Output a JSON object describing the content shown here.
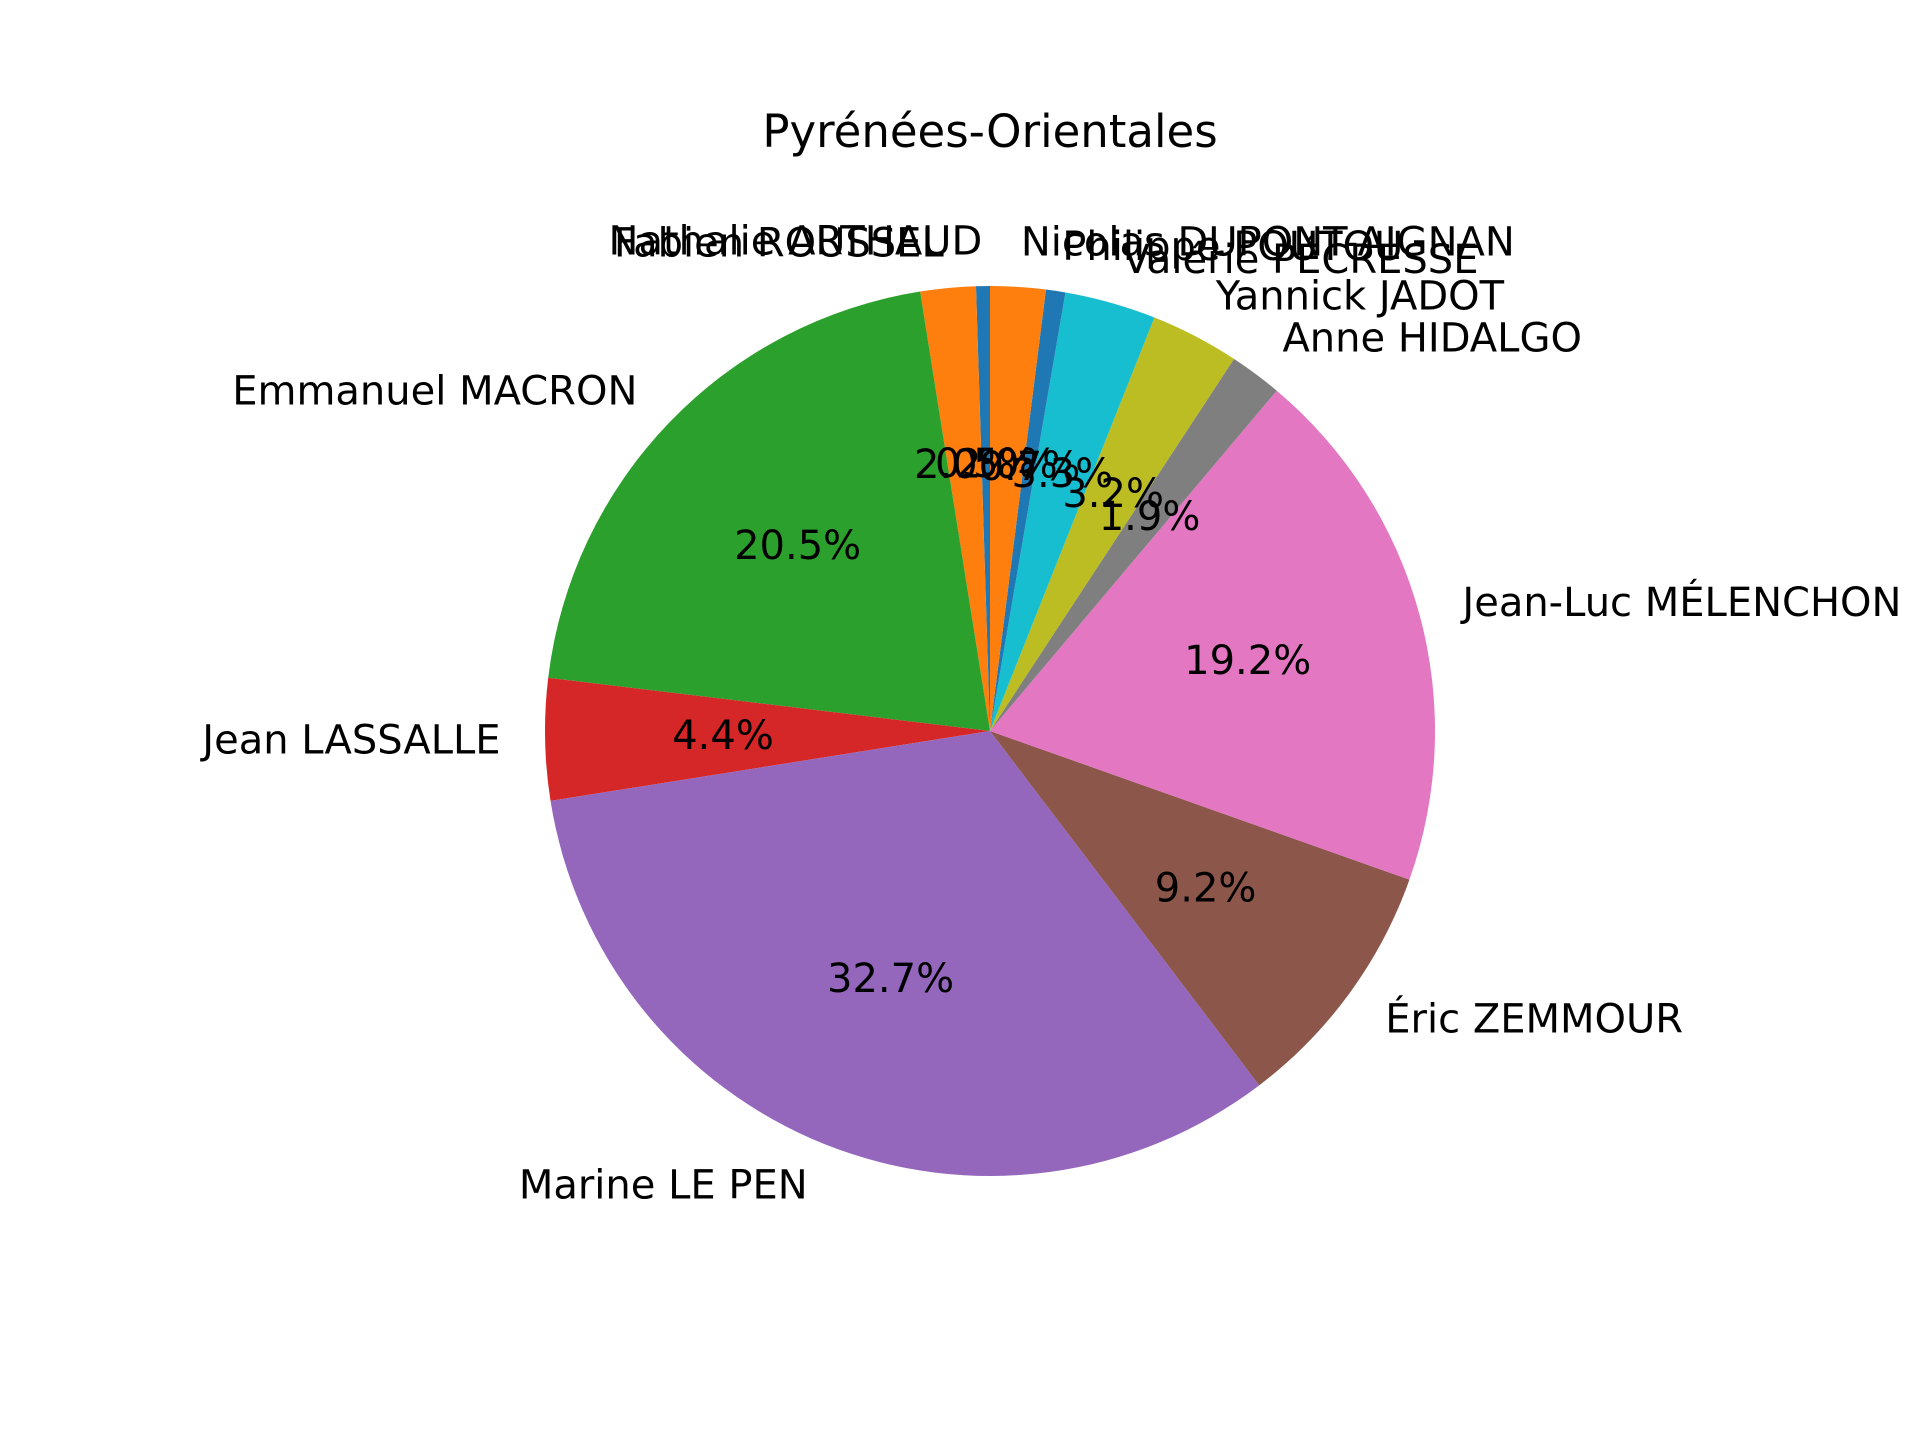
{
  "chart_data": {
    "type": "pie",
    "title": "Pyrénées-Orientales",
    "start_angle_deg": 90,
    "direction": "counterclockwise",
    "slices": [
      {
        "label": "Nathalie ARTHAUD",
        "value": 0.5,
        "pct_label": "0.5%",
        "color": "#1f77b4"
      },
      {
        "label": "Fabien ROUSSEL",
        "value": 2.0,
        "pct_label": "2.0%",
        "color": "#ff7f0e"
      },
      {
        "label": "Emmanuel MACRON",
        "value": 20.5,
        "pct_label": "20.5%",
        "color": "#2ca02c"
      },
      {
        "label": "Jean LASSALLE",
        "value": 4.4,
        "pct_label": "4.4%",
        "color": "#d62728"
      },
      {
        "label": "Marine LE PEN",
        "value": 32.7,
        "pct_label": "32.7%",
        "color": "#9467bd"
      },
      {
        "label": "Éric ZEMMOUR",
        "value": 9.2,
        "pct_label": "9.2%",
        "color": "#8c564b"
      },
      {
        "label": "Jean-Luc MÉLENCHON",
        "value": 19.2,
        "pct_label": "19.2%",
        "color": "#e377c2"
      },
      {
        "label": "Anne HIDALGO",
        "value": 1.9,
        "pct_label": "1.9%",
        "color": "#7f7f7f"
      },
      {
        "label": "Yannick JADOT",
        "value": 3.2,
        "pct_label": "3.2%",
        "color": "#bcbd22"
      },
      {
        "label": "Valérie PÉCRESSE",
        "value": 3.3,
        "pct_label": "3.3%",
        "color": "#17becf"
      },
      {
        "label": "Philippe POUTOU",
        "value": 0.7,
        "pct_label": "0.7%",
        "color": "#1f77b4"
      },
      {
        "label": "Nicolas DUPONT-AIGNAN",
        "value": 2.0,
        "pct_label": "2.0%",
        "color": "#ff7f0e"
      }
    ]
  }
}
